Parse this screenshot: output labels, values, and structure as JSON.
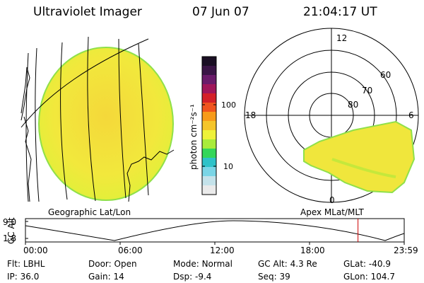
{
  "header": {
    "title": "Ultraviolet Imager",
    "date": "07 Jun 07",
    "time": "21:04:17 UT"
  },
  "colorbar": {
    "unit_label": "photon cm⁻²s⁻¹",
    "tick_labels": [
      "100",
      "10"
    ],
    "colors": [
      "#1a0f24",
      "#3a1546",
      "#6a1b6a",
      "#a0165a",
      "#d42028",
      "#f0541e",
      "#f79b1a",
      "#f5c52a",
      "#eef23a",
      "#a9ec3a",
      "#34d65a",
      "#2ec2c8",
      "#7ad5e6",
      "#c4e2ea",
      "#eaeaea"
    ]
  },
  "geo_panel": {
    "label": "Geographic Lat/Lon",
    "disk_color": "#f2e83a"
  },
  "polar_panel": {
    "label": "Apex MLat/MLT",
    "mlt_labels": {
      "top": "12",
      "left": "18",
      "right": "6",
      "bottom": "0"
    },
    "lat_labels": [
      "60",
      "70",
      "80"
    ]
  },
  "orbit_plot": {
    "ylabel": "GC Alt",
    "y_ticks": [
      "9.0",
      "1.8"
    ],
    "x_ticks": [
      "00:00",
      "06:00",
      "12:00",
      "18:00",
      "23:59"
    ],
    "current_time_color": "#cc0000",
    "current_time_hours": 21.07
  },
  "footer": {
    "row1": [
      {
        "label": "Flt:",
        "value": "LBHL"
      },
      {
        "label": "Door:",
        "value": "Open"
      },
      {
        "label": "Mode:",
        "value": "Normal"
      },
      {
        "label": "GC Alt:",
        "value": "4.3 Re"
      },
      {
        "label": "GLat:",
        "value": "-40.9"
      }
    ],
    "row2": [
      {
        "label": "IP:",
        "value": "36.0"
      },
      {
        "label": "Gain:",
        "value": "14"
      },
      {
        "label": "Dsp:",
        "value": "-9.4"
      },
      {
        "label": "Seq:",
        "value": "39"
      },
      {
        "label": "GLon:",
        "value": "104.7"
      }
    ]
  }
}
